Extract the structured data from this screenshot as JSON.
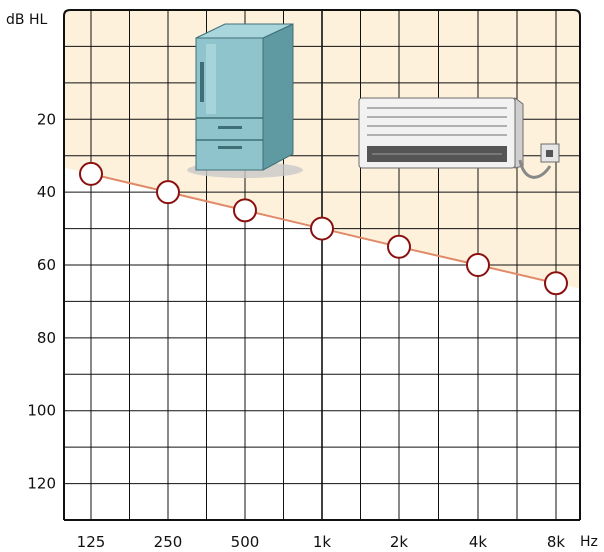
{
  "chart_data": {
    "type": "line",
    "title": "",
    "ylabel": "dB HL",
    "xlabel": "Hz",
    "x_categories": [
      "125",
      "250",
      "500",
      "1k",
      "2k",
      "4k",
      "8k"
    ],
    "y_ticks": [
      20,
      40,
      60,
      80,
      100,
      120
    ],
    "ylim": [
      -10,
      130
    ],
    "y_inverted": true,
    "grid": true,
    "series": [
      {
        "values": [
          35,
          40,
          45,
          50,
          55,
          60,
          65
        ]
      }
    ],
    "illustrations": [
      "refrigerator",
      "air-conditioner"
    ]
  },
  "colors": {
    "shaded_region": "#fdf1dc",
    "grid": "#111111",
    "line": "#e08a6a",
    "marker_fill": "#ffffff",
    "marker_stroke": "#8a1010",
    "fridge_body": "#8fc4cc",
    "fridge_dark": "#5f9aa3",
    "ac_body": "#f2f2f2",
    "ac_stroke": "#6b6b6b"
  }
}
